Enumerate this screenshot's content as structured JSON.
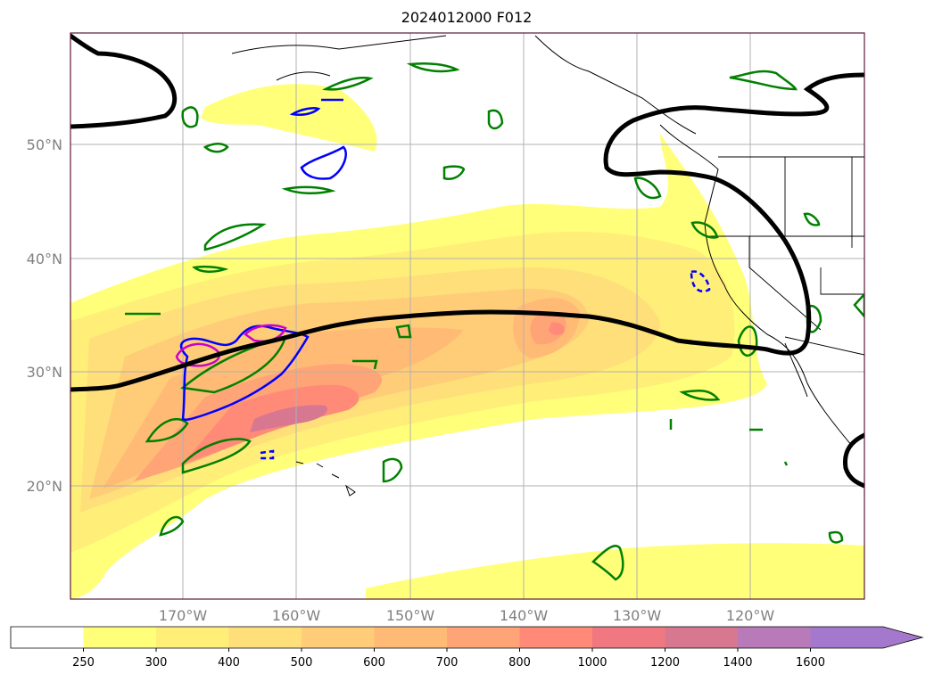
{
  "title": "2024012000 F012",
  "map": {
    "longitude_labels": [
      "170°W",
      "160°W",
      "150°W",
      "140°W",
      "130°W",
      "120°W"
    ],
    "latitude_labels": [
      "50°N",
      "40°N",
      "30°N",
      "20°N"
    ],
    "gridlines": true
  },
  "colorbar": {
    "orientation": "horizontal",
    "extend": "max",
    "tick_labels": [
      "250",
      "300",
      "400",
      "500",
      "600",
      "700",
      "800",
      "1000",
      "1200",
      "1400",
      "1600"
    ],
    "colors": [
      "#ffffff",
      "#ffff7a",
      "#ffef78",
      "#ffdf7a",
      "#ffcd78",
      "#ffbb76",
      "#ffa476",
      "#ff8a78",
      "#f07880",
      "#d87890",
      "#b87ab8",
      "#a478cc"
    ]
  },
  "legend_colors": {
    "jet_contour": "#000000",
    "green_contour": "#008000",
    "blue_contour": "#0000ff",
    "magenta_contour": "#cc00cc"
  }
}
